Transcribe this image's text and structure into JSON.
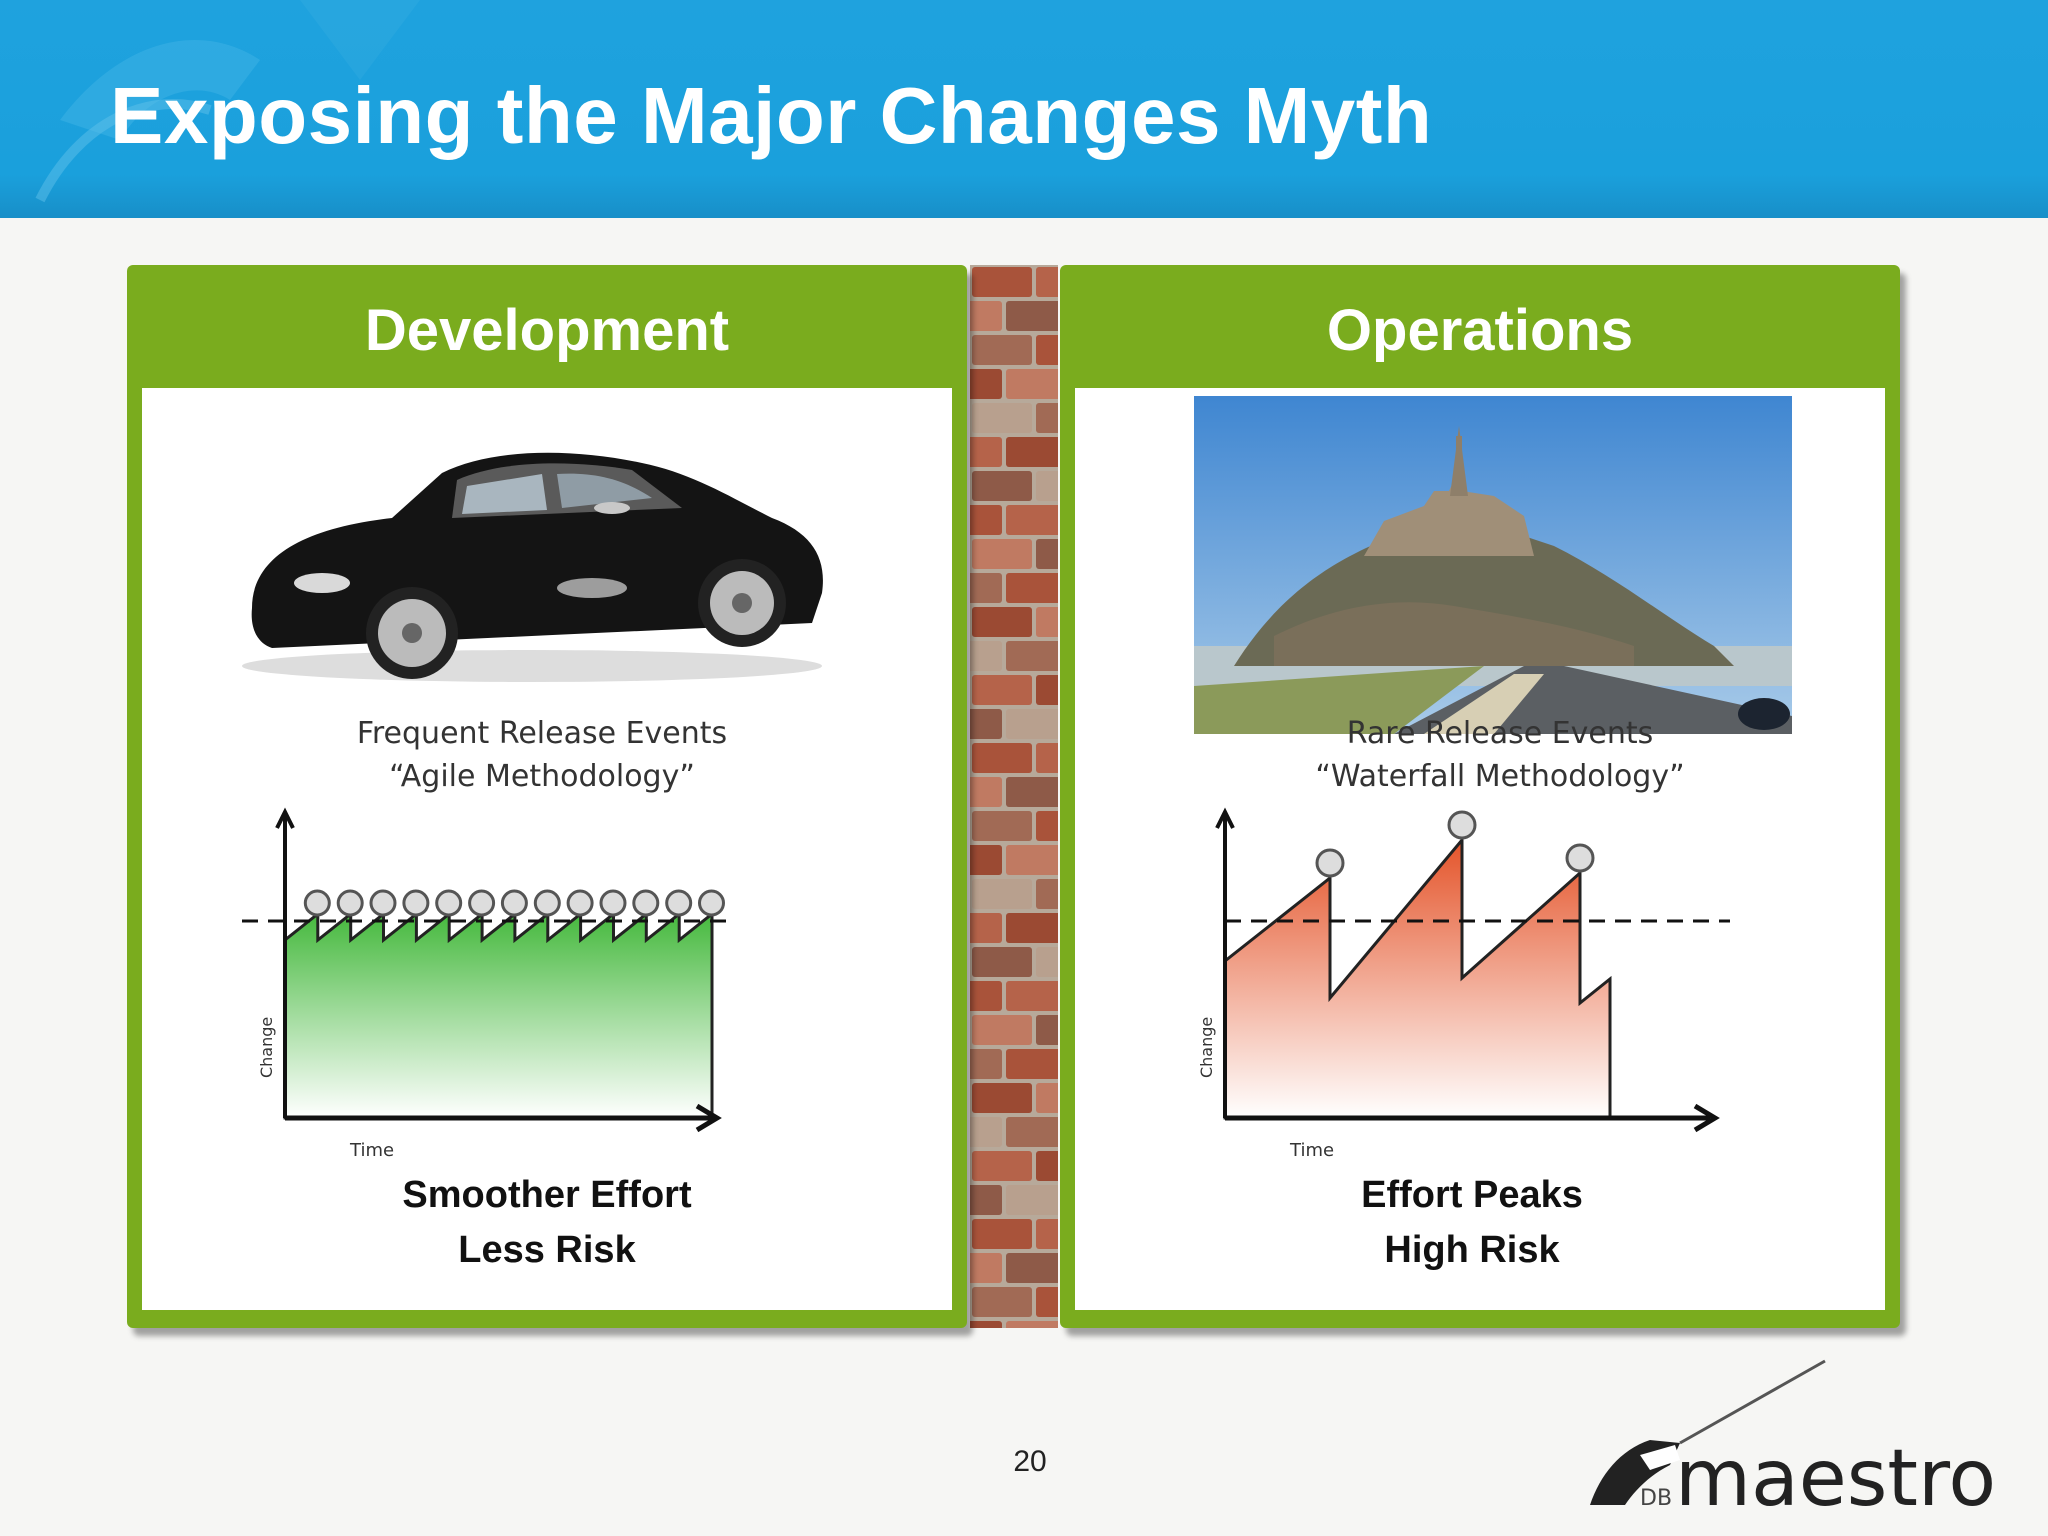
{
  "slide": {
    "title": "Exposing the Major Changes Myth",
    "page_number": "20",
    "colors": {
      "header_blue": "#1aa0dc",
      "panel_green": "#7aac1e",
      "agile_fill": "#46b93e",
      "waterfall_fill": "#e4542a"
    }
  },
  "panels": {
    "left": {
      "title": "Development",
      "image_icon": "sports-car-photo",
      "caption_line1": "Smoother Effort",
      "caption_line2": "Less Risk"
    },
    "right": {
      "title": "Operations",
      "image_icon": "mont-saint-michel-photo",
      "caption_line1": "Effort Peaks",
      "caption_line2": "High Risk"
    }
  },
  "diagrams": {
    "agile": {
      "title_line1": "Frequent Release Events",
      "title_line2": "“Agile Methodology”",
      "x_label": "Time",
      "y_label": "Change",
      "release_count": 13
    },
    "waterfall": {
      "title_line1": "Rare Release Events",
      "title_line2": "“Waterfall Methodology”",
      "x_label": "Time",
      "y_label": "Change",
      "release_count": 3
    }
  },
  "logo": {
    "brand": "maestro",
    "prefix": "DB"
  }
}
